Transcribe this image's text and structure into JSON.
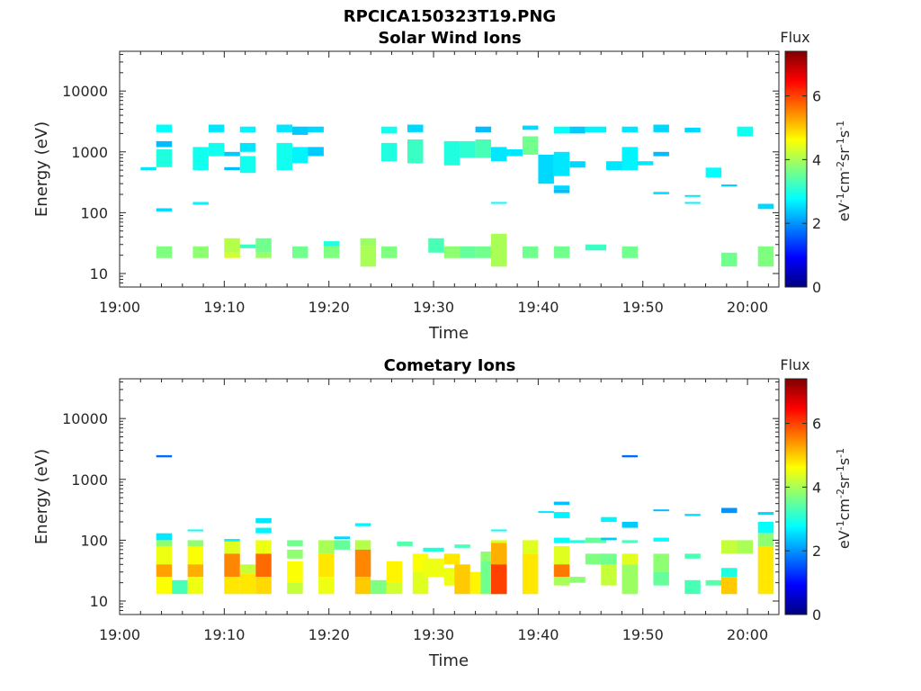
{
  "figure_title": "RPCICA150323T19.PNG",
  "colorscale": [
    "#00007f",
    "#0000ff",
    "#007fff",
    "#00ffff",
    "#7fff7f",
    "#ffff00",
    "#ff7f00",
    "#ff0000",
    "#7f0000"
  ],
  "chart_data": [
    {
      "type": "heatmap",
      "title": "Solar Wind Ions",
      "xlabel": "Time",
      "ylabel": "Energy (eV)",
      "xticklabels": [
        "19:00",
        "19:10",
        "19:20",
        "19:30",
        "19:40",
        "19:50",
        "20:00"
      ],
      "xlim_minutes": [
        0,
        63
      ],
      "ylim": [
        6,
        45000
      ],
      "yscale": "log",
      "yticklabels": [
        "10",
        "100",
        "1000",
        "10000"
      ],
      "colorbar": {
        "title": "Flux",
        "label": "eV-1cm-2sr-1s-1",
        "ticks": [
          "0",
          "2",
          "4",
          "6"
        ],
        "range": [
          0,
          7.4
        ]
      },
      "cells": [
        [
          2.0,
          3.5,
          500,
          560,
          2.6
        ],
        [
          3.5,
          5.0,
          2100,
          2800,
          2.8
        ],
        [
          3.5,
          5.0,
          1200,
          1500,
          2.3
        ],
        [
          3.5,
          5.0,
          560,
          1100,
          3.0
        ],
        [
          3.5,
          5.0,
          105,
          118,
          2.5
        ],
        [
          3.5,
          5.0,
          18,
          28,
          3.7
        ],
        [
          7.0,
          8.5,
          500,
          1200,
          2.9
        ],
        [
          7.0,
          8.5,
          135,
          150,
          2.7
        ],
        [
          7.0,
          8.5,
          18,
          28,
          3.8
        ],
        [
          8.5,
          10.0,
          2100,
          2800,
          2.6
        ],
        [
          8.5,
          10.0,
          850,
          1400,
          2.9
        ],
        [
          10.0,
          11.5,
          850,
          1000,
          2.4
        ],
        [
          10.0,
          11.5,
          500,
          560,
          2.3
        ],
        [
          10.0,
          11.5,
          22,
          38,
          4.1
        ],
        [
          10.0,
          11.5,
          18,
          22,
          4.3
        ],
        [
          11.5,
          13.0,
          2100,
          2600,
          2.7
        ],
        [
          11.5,
          13.0,
          1000,
          1400,
          2.6
        ],
        [
          11.5,
          13.0,
          450,
          850,
          2.9
        ],
        [
          11.5,
          13.0,
          26,
          30,
          3.2
        ],
        [
          13.0,
          14.5,
          22,
          38,
          3.6
        ],
        [
          13.0,
          14.5,
          18,
          22,
          3.9
        ],
        [
          15.0,
          16.5,
          2100,
          2800,
          2.6
        ],
        [
          15.0,
          16.5,
          500,
          1400,
          2.9
        ],
        [
          16.5,
          18.0,
          1900,
          2600,
          2.4
        ],
        [
          16.5,
          18.0,
          650,
          1200,
          2.7
        ],
        [
          16.5,
          18.0,
          18,
          28,
          3.6
        ],
        [
          18.0,
          19.5,
          2100,
          2600,
          2.5
        ],
        [
          18.0,
          19.5,
          850,
          1200,
          2.4
        ],
        [
          19.5,
          21.0,
          28,
          34,
          3.0
        ],
        [
          19.5,
          21.0,
          18,
          28,
          3.7
        ],
        [
          23.0,
          24.5,
          28,
          38,
          3.9
        ],
        [
          23.0,
          24.5,
          13,
          28,
          4.0
        ],
        [
          25.0,
          26.5,
          2000,
          2600,
          2.9
        ],
        [
          25.0,
          26.5,
          700,
          1400,
          3.0
        ],
        [
          25.0,
          26.5,
          18,
          28,
          3.7
        ],
        [
          27.5,
          29.0,
          2100,
          2800,
          2.5
        ],
        [
          27.5,
          29.0,
          650,
          1600,
          3.2
        ],
        [
          29.5,
          31.0,
          22,
          38,
          3.3
        ],
        [
          31.0,
          32.5,
          600,
          1500,
          3.0
        ],
        [
          31.0,
          32.5,
          18,
          28,
          3.8
        ],
        [
          32.5,
          34.0,
          800,
          1500,
          3.1
        ],
        [
          32.5,
          34.0,
          18,
          28,
          3.5
        ],
        [
          34.0,
          35.5,
          2100,
          2600,
          2.3
        ],
        [
          34.0,
          35.5,
          800,
          1600,
          3.3
        ],
        [
          34.0,
          35.5,
          18,
          28,
          3.6
        ],
        [
          35.5,
          37.0,
          700,
          1200,
          2.6
        ],
        [
          35.5,
          37.0,
          140,
          150,
          2.8
        ],
        [
          35.5,
          37.0,
          13,
          45,
          4.0
        ],
        [
          37.0,
          38.5,
          850,
          1100,
          2.6
        ],
        [
          38.5,
          40.0,
          2300,
          2700,
          2.5
        ],
        [
          38.5,
          40.0,
          900,
          1800,
          3.6
        ],
        [
          38.5,
          40.0,
          18,
          28,
          3.6
        ],
        [
          40.0,
          41.5,
          300,
          900,
          2.5
        ],
        [
          41.5,
          43.0,
          2000,
          2600,
          2.8
        ],
        [
          41.5,
          43.0,
          400,
          1000,
          2.6
        ],
        [
          41.5,
          43.0,
          240,
          280,
          2.5
        ],
        [
          41.5,
          43.0,
          210,
          240,
          2.3
        ],
        [
          41.5,
          43.0,
          18,
          28,
          3.6
        ],
        [
          43.0,
          44.5,
          2000,
          2600,
          2.4
        ],
        [
          43.0,
          44.5,
          550,
          700,
          2.5
        ],
        [
          44.5,
          46.5,
          2100,
          2600,
          2.7
        ],
        [
          44.5,
          46.5,
          24,
          30,
          3.2
        ],
        [
          46.5,
          48.0,
          500,
          700,
          2.6
        ],
        [
          48.0,
          49.5,
          2100,
          2600,
          2.6
        ],
        [
          48.0,
          49.5,
          500,
          1200,
          2.7
        ],
        [
          48.0,
          49.5,
          18,
          28,
          3.6
        ],
        [
          49.5,
          51.0,
          600,
          700,
          2.6
        ],
        [
          51.0,
          52.5,
          2100,
          2800,
          2.5
        ],
        [
          51.0,
          52.5,
          850,
          1000,
          2.3
        ],
        [
          51.0,
          52.5,
          200,
          220,
          2.6
        ],
        [
          54.0,
          55.5,
          2100,
          2500,
          2.5
        ],
        [
          54.0,
          55.5,
          185,
          195,
          2.6
        ],
        [
          54.0,
          55.5,
          140,
          150,
          2.7
        ],
        [
          56.0,
          57.5,
          380,
          550,
          2.8
        ],
        [
          57.5,
          59.0,
          270,
          290,
          2.4
        ],
        [
          57.5,
          59.0,
          13,
          22,
          3.6
        ],
        [
          59.0,
          60.5,
          1800,
          2600,
          2.9
        ],
        [
          61.0,
          62.5,
          115,
          140,
          2.5
        ],
        [
          61.0,
          62.5,
          13,
          28,
          3.7
        ]
      ]
    },
    {
      "type": "heatmap",
      "title": "Cometary Ions",
      "xlabel": "Time",
      "ylabel": "Energy (eV)",
      "xticklabels": [
        "19:00",
        "19:10",
        "19:20",
        "19:30",
        "19:40",
        "19:50",
        "20:00"
      ],
      "xlim_minutes": [
        0,
        63
      ],
      "ylim": [
        6,
        45000
      ],
      "yscale": "log",
      "yticklabels": [
        "10",
        "100",
        "1000",
        "10000"
      ],
      "colorbar": {
        "title": "Flux",
        "label": "eV-1cm-2sr-1s-1",
        "ticks": [
          "0",
          "2",
          "4",
          "6"
        ],
        "range": [
          0,
          7.4
        ]
      },
      "cells": [
        [
          3.5,
          5.0,
          2300,
          2500,
          1.7
        ],
        [
          3.5,
          5.0,
          100,
          130,
          2.6
        ],
        [
          3.5,
          5.0,
          80,
          100,
          3.8
        ],
        [
          3.5,
          5.0,
          40,
          80,
          4.5
        ],
        [
          3.5,
          5.0,
          25,
          40,
          5.3
        ],
        [
          3.5,
          5.0,
          13,
          25,
          4.6
        ],
        [
          5.0,
          6.5,
          13,
          22,
          3.3
        ],
        [
          6.5,
          8.0,
          140,
          150,
          2.8
        ],
        [
          6.5,
          8.0,
          80,
          100,
          3.8
        ],
        [
          6.5,
          8.0,
          40,
          80,
          4.6
        ],
        [
          6.5,
          8.0,
          25,
          40,
          5.2
        ],
        [
          6.5,
          8.0,
          13,
          25,
          4.5
        ],
        [
          10.0,
          11.5,
          95,
          105,
          2.7
        ],
        [
          10.0,
          11.5,
          60,
          95,
          4.4
        ],
        [
          10.0,
          11.5,
          25,
          60,
          5.5
        ],
        [
          10.0,
          11.5,
          13,
          25,
          4.8
        ],
        [
          11.5,
          13.0,
          28,
          40,
          4.2
        ],
        [
          11.5,
          13.0,
          13,
          28,
          4.8
        ],
        [
          13.0,
          14.5,
          190,
          230,
          2.6
        ],
        [
          13.0,
          14.5,
          130,
          160,
          2.7
        ],
        [
          13.0,
          14.5,
          60,
          100,
          4.5
        ],
        [
          13.0,
          14.5,
          25,
          60,
          5.7
        ],
        [
          13.0,
          14.5,
          13,
          25,
          4.9
        ],
        [
          16.0,
          17.5,
          80,
          100,
          3.6
        ],
        [
          16.0,
          17.5,
          50,
          70,
          3.8
        ],
        [
          16.0,
          17.5,
          20,
          45,
          4.6
        ],
        [
          16.0,
          17.5,
          13,
          20,
          4.2
        ],
        [
          19.0,
          20.5,
          60,
          100,
          4.0
        ],
        [
          19.0,
          20.5,
          25,
          60,
          4.8
        ],
        [
          19.0,
          20.5,
          13,
          25,
          4.5
        ],
        [
          20.5,
          22.0,
          105,
          115,
          2.5
        ],
        [
          20.5,
          22.0,
          70,
          100,
          3.5
        ],
        [
          22.5,
          24.0,
          170,
          190,
          2.7
        ],
        [
          22.5,
          24.0,
          70,
          100,
          4.1
        ],
        [
          22.5,
          24.0,
          25,
          70,
          5.5
        ],
        [
          22.5,
          24.0,
          13,
          25,
          5.0
        ],
        [
          24.0,
          25.5,
          13,
          22,
          3.7
        ],
        [
          25.5,
          27.0,
          20,
          45,
          4.7
        ],
        [
          25.5,
          27.0,
          13,
          20,
          4.3
        ],
        [
          26.5,
          28.0,
          80,
          95,
          3.4
        ],
        [
          28.0,
          29.5,
          30,
          60,
          4.6
        ],
        [
          28.0,
          29.5,
          13,
          30,
          4.4
        ],
        [
          29.0,
          31.0,
          65,
          75,
          3.0
        ],
        [
          29.0,
          31.0,
          25,
          50,
          4.5
        ],
        [
          31.0,
          32.5,
          40,
          60,
          4.8
        ],
        [
          31.0,
          32.5,
          18,
          35,
          4.5
        ],
        [
          32.0,
          33.5,
          75,
          85,
          3.3
        ],
        [
          32.0,
          33.5,
          13,
          40,
          5.0
        ],
        [
          33.5,
          35.0,
          13,
          30,
          4.7
        ],
        [
          34.5,
          36.0,
          45,
          65,
          3.8
        ],
        [
          34.5,
          36.0,
          13,
          45,
          3.6
        ],
        [
          35.5,
          37.0,
          140,
          150,
          2.8
        ],
        [
          35.5,
          37.0,
          90,
          100,
          4.4
        ],
        [
          35.5,
          37.0,
          40,
          90,
          5.2
        ],
        [
          35.5,
          37.0,
          13,
          40,
          6.0
        ],
        [
          38.5,
          40.0,
          60,
          100,
          4.4
        ],
        [
          38.5,
          40.0,
          13,
          60,
          4.8
        ],
        [
          40.0,
          41.5,
          280,
          300,
          2.6
        ],
        [
          41.5,
          43.0,
          380,
          430,
          2.3
        ],
        [
          41.5,
          43.0,
          230,
          290,
          2.7
        ],
        [
          41.5,
          43.0,
          90,
          110,
          2.8
        ],
        [
          41.5,
          43.0,
          40,
          80,
          4.4
        ],
        [
          41.5,
          43.0,
          25,
          40,
          5.6
        ],
        [
          41.5,
          43.0,
          18,
          25,
          4.0
        ],
        [
          43.0,
          44.5,
          90,
          100,
          3.0
        ],
        [
          43.0,
          44.5,
          20,
          25,
          3.8
        ],
        [
          44.5,
          46.5,
          90,
          110,
          3.5
        ],
        [
          44.5,
          46.5,
          40,
          60,
          3.7
        ],
        [
          46.0,
          47.5,
          200,
          240,
          2.7
        ],
        [
          46.0,
          47.5,
          100,
          110,
          2.4
        ],
        [
          46.0,
          47.5,
          40,
          60,
          3.6
        ],
        [
          46.0,
          47.5,
          18,
          40,
          4.2
        ],
        [
          48.0,
          49.5,
          2300,
          2500,
          1.7
        ],
        [
          48.0,
          49.5,
          160,
          200,
          2.4
        ],
        [
          48.0,
          49.5,
          90,
          100,
          3.3
        ],
        [
          48.0,
          49.5,
          40,
          60,
          4.4
        ],
        [
          48.0,
          49.5,
          13,
          40,
          3.9
        ],
        [
          51.0,
          52.5,
          300,
          320,
          2.3
        ],
        [
          51.0,
          52.5,
          95,
          110,
          2.8
        ],
        [
          51.0,
          52.5,
          30,
          60,
          3.8
        ],
        [
          51.0,
          52.5,
          18,
          30,
          3.5
        ],
        [
          54.0,
          55.5,
          250,
          270,
          2.5
        ],
        [
          54.0,
          55.5,
          50,
          60,
          3.3
        ],
        [
          54.0,
          55.5,
          13,
          22,
          3.3
        ],
        [
          56.0,
          57.5,
          18,
          22,
          3.4
        ],
        [
          57.5,
          59.0,
          280,
          340,
          2.0
        ],
        [
          57.5,
          59.0,
          60,
          100,
          4.2
        ],
        [
          57.5,
          59.0,
          25,
          35,
          3.0
        ],
        [
          57.5,
          59.0,
          13,
          25,
          5.0
        ],
        [
          59.0,
          60.5,
          60,
          100,
          4.0
        ],
        [
          61.0,
          62.5,
          260,
          290,
          2.5
        ],
        [
          61.0,
          62.5,
          130,
          200,
          2.8
        ],
        [
          61.0,
          62.5,
          80,
          130,
          3.8
        ],
        [
          61.0,
          62.5,
          25,
          80,
          4.8
        ],
        [
          61.0,
          62.5,
          13,
          25,
          4.8
        ]
      ]
    }
  ]
}
